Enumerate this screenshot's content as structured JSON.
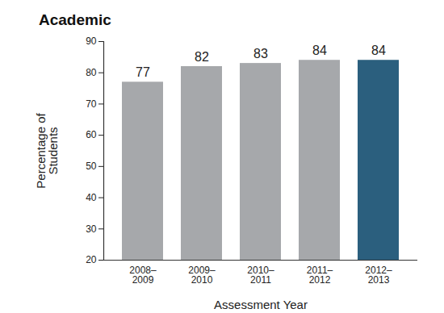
{
  "chart_data": {
    "type": "bar",
    "title": "Academic",
    "x_label": "Assessment Year",
    "y_label": "Percentage of\nStudents",
    "categories": [
      "2008–\n2009",
      "2009–\n2010",
      "2010–\n2011",
      "2011–\n2012",
      "2012–\n2013"
    ],
    "values": [
      77,
      82,
      83,
      84,
      84
    ],
    "colors": [
      "#a6a8ab",
      "#a6a8ab",
      "#a6a8ab",
      "#a6a8ab",
      "#2b5f7e"
    ],
    "ylim": [
      20,
      90
    ],
    "yticks": [
      20,
      30,
      40,
      50,
      60,
      70,
      80,
      90
    ],
    "grid": false,
    "data_labels": true
  }
}
